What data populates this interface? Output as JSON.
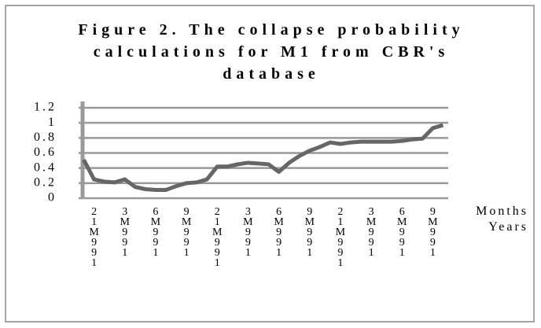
{
  "chart_data": {
    "type": "line",
    "title": "Figure 2. The collapse probability calculations for M1 from CBR's database",
    "xlabel": "Months Years",
    "categories": [
      null,
      "21M991",
      null,
      null,
      "3M991",
      null,
      null,
      "6M991",
      null,
      null,
      "9M991",
      null,
      null,
      "21M991",
      null,
      null,
      "3M991",
      null,
      null,
      "6M991",
      null,
      null,
      "9M991",
      null,
      null,
      "21M991",
      null,
      null,
      "3M991",
      null,
      null,
      "6M991",
      null,
      null,
      "9M991",
      null
    ],
    "series": [
      {
        "color": "#666666",
        "values": [
          0.51,
          0.25,
          0.22,
          0.21,
          0.25,
          0.15,
          0.12,
          0.11,
          0.11,
          0.16,
          0.2,
          0.21,
          0.25,
          0.42,
          0.42,
          0.45,
          0.47,
          0.46,
          0.45,
          0.35,
          0.47,
          0.56,
          0.63,
          0.68,
          0.74,
          0.72,
          0.74,
          0.75,
          0.75,
          0.75,
          0.75,
          0.76,
          0.78,
          0.79,
          0.93,
          0.97
        ]
      }
    ],
    "ylim": [
      0,
      1.2
    ],
    "yticks": [
      0,
      0.2,
      0.4,
      0.6,
      0.8,
      1,
      1.2
    ],
    "grid": true
  }
}
